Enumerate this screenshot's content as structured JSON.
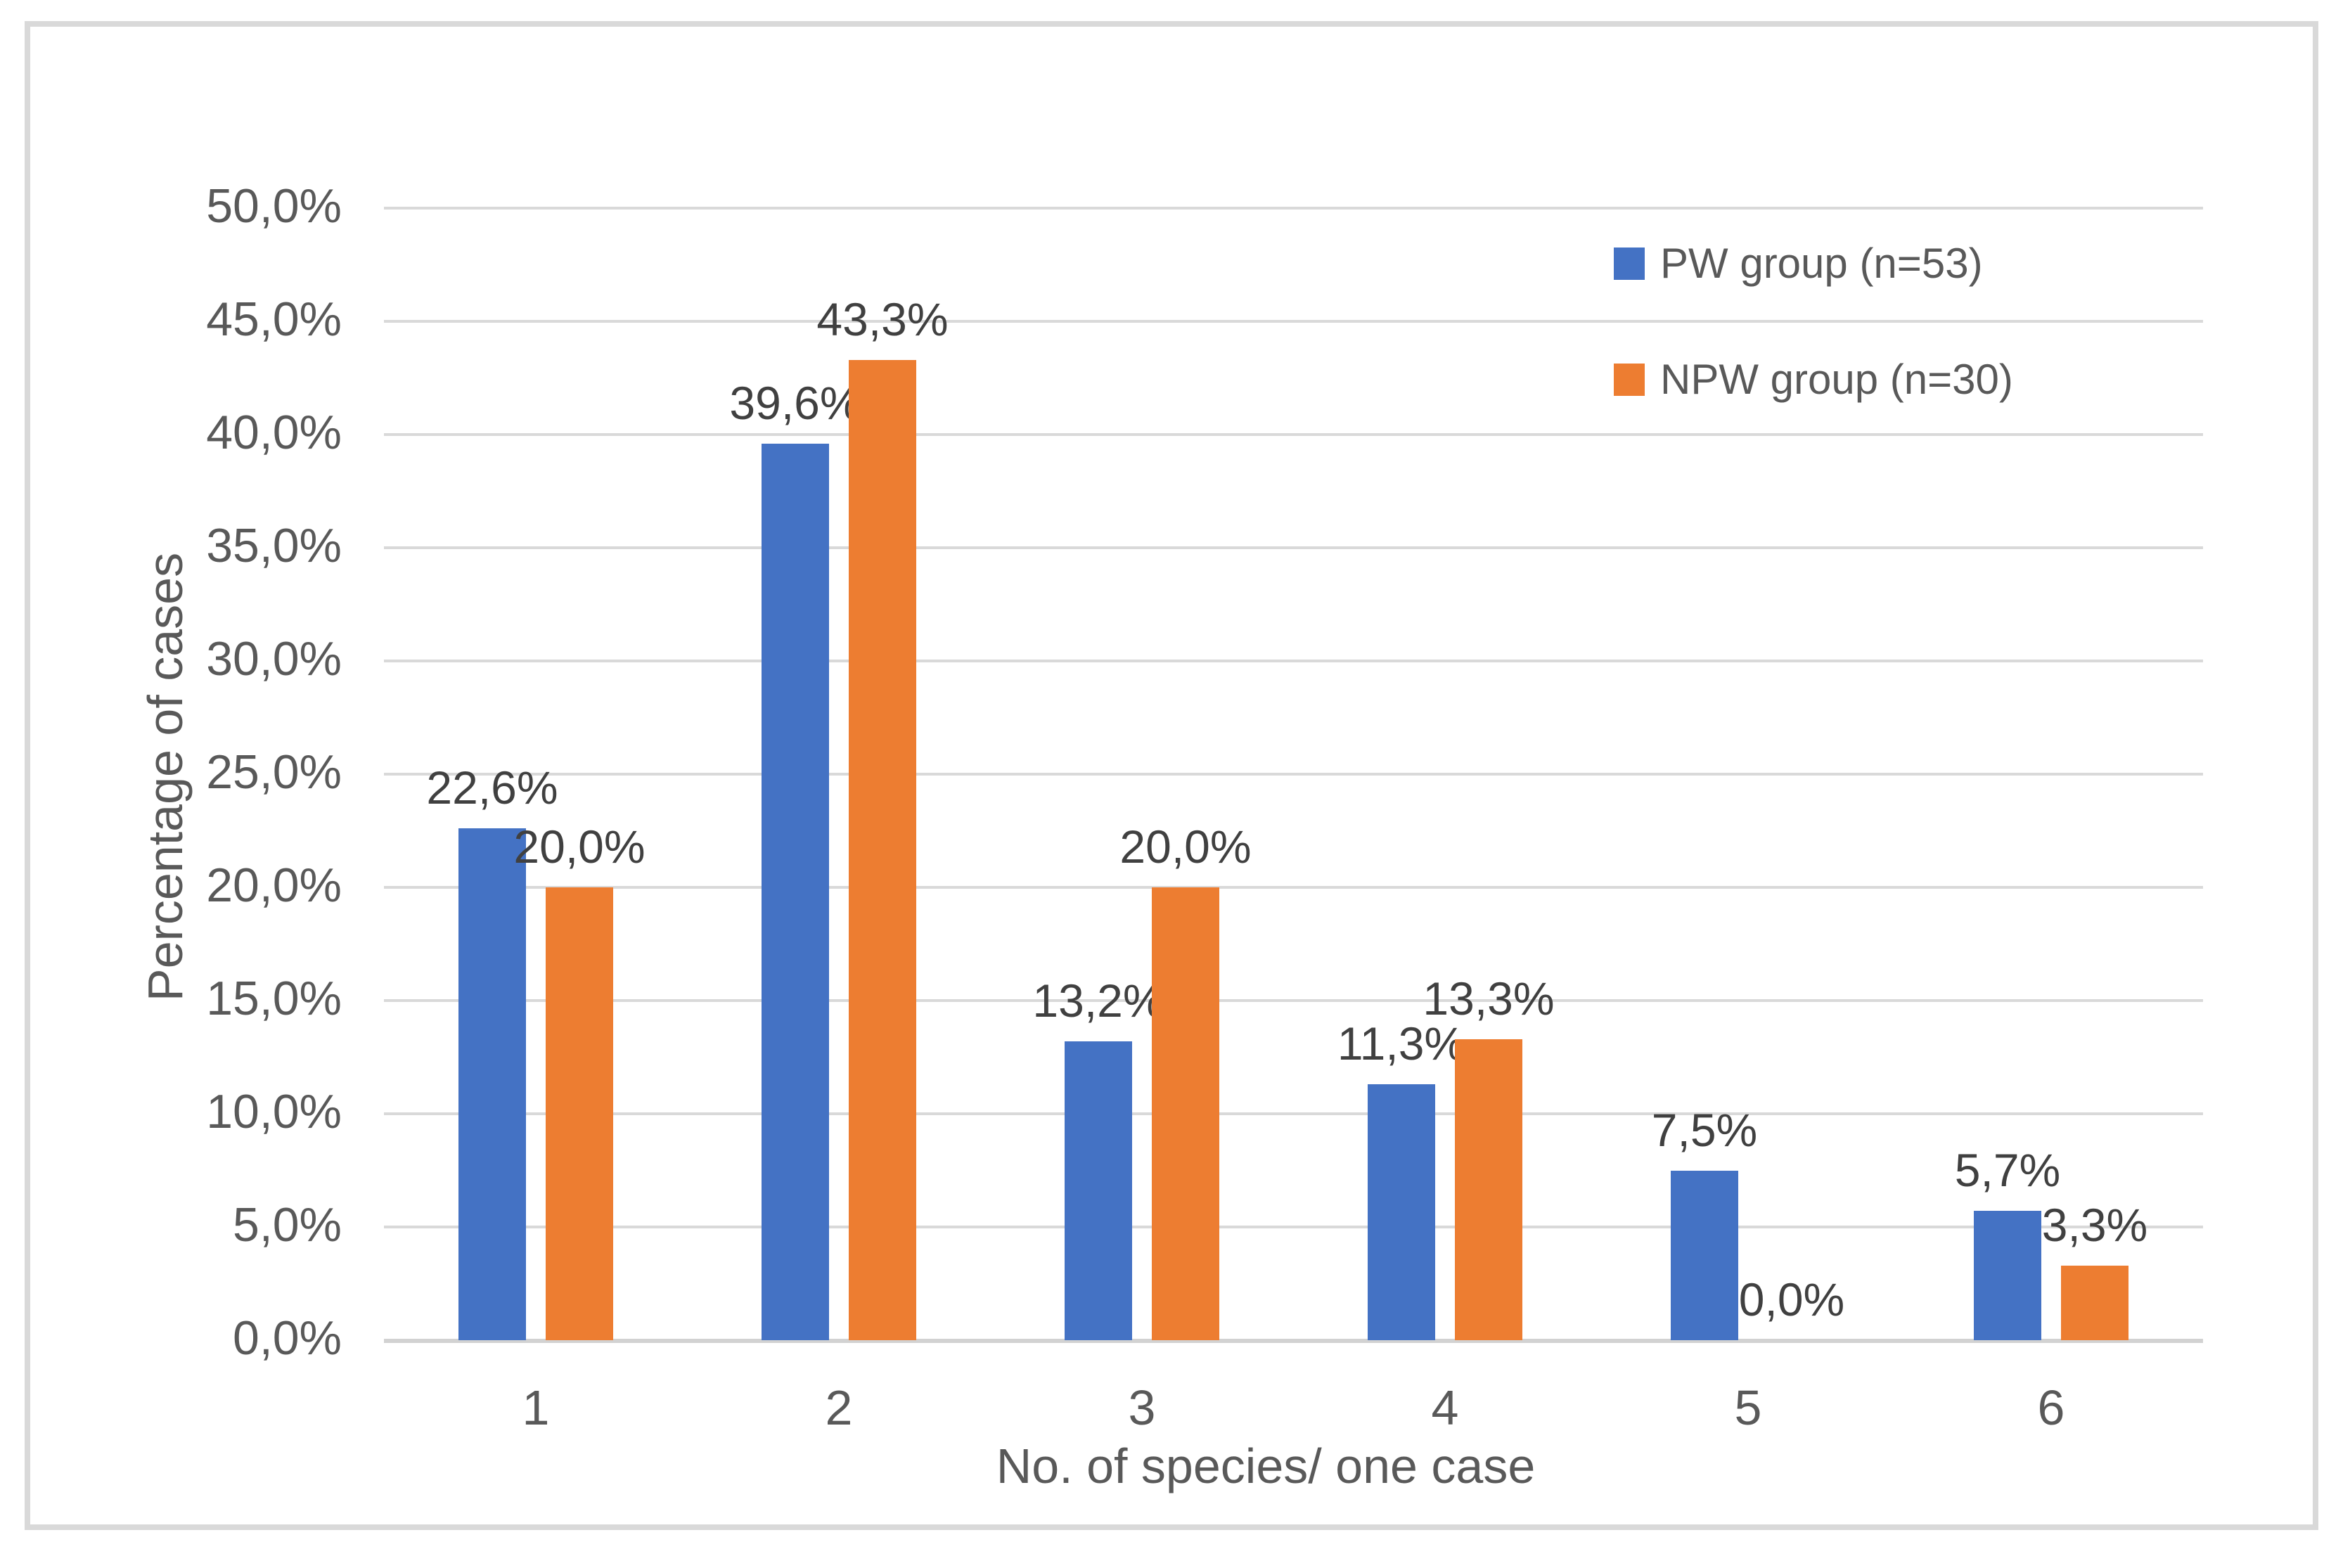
{
  "chart_data": {
    "type": "bar",
    "title": "",
    "categories": [
      "1",
      "2",
      "3",
      "4",
      "5",
      "6"
    ],
    "series": [
      {
        "name": "PW group (n=53)",
        "color": "#4472C4",
        "values": [
          22.6,
          39.6,
          13.2,
          11.3,
          7.5,
          5.7
        ],
        "value_labels": [
          "22,6%",
          "39,6%",
          "13,2%",
          "11,3%",
          "7,5%",
          "5,7%"
        ]
      },
      {
        "name": "NPW group (n=30)",
        "color": "#ED7D31",
        "values": [
          20.0,
          43.3,
          20.0,
          13.3,
          0.0,
          3.3
        ],
        "value_labels": [
          "20,0%",
          "43,3%",
          "20,0%",
          "13,3%",
          "0,0%",
          "3,3%"
        ]
      }
    ],
    "xlabel": "No. of species/ one case",
    "ylabel": "Percentage of cases",
    "ylim": [
      0,
      50
    ],
    "ytick_step": 5,
    "ytick_labels": [
      "0,0%",
      "5,0%",
      "10,0%",
      "15,0%",
      "20,0%",
      "25,0%",
      "30,0%",
      "35,0%",
      "40,0%",
      "45,0%",
      "50,0%"
    ],
    "grid": true,
    "legend_position": "top-right",
    "decimal_separator": ","
  },
  "colors": {
    "pw_series": "#4472C4",
    "npw_series": "#ED7D31",
    "gridline": "#d9d9d9",
    "chart_border": "#d9d9d9",
    "tick_text": "#595959",
    "data_label_text": "#404040",
    "background": "#ffffff"
  }
}
